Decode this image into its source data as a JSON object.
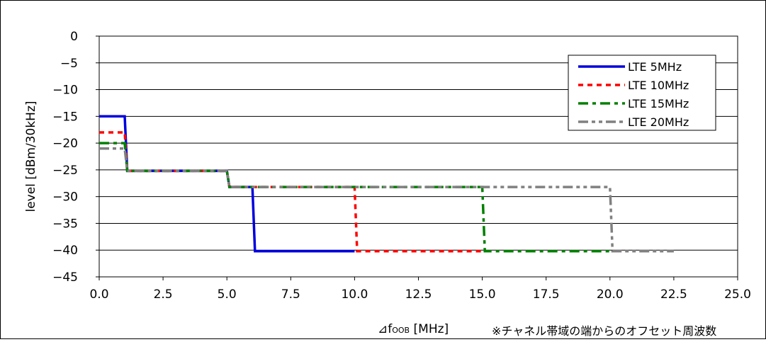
{
  "chart_data": {
    "type": "line",
    "title": "",
    "xlabel": "⊿fOOB [MHz]",
    "xlabel_main": "⊿f",
    "xlabel_sub": "OOB",
    "xlabel_unit": " [MHz]",
    "ylabel": "level [dBm/30kHz]",
    "note": "※チャネル帯域の端からのオフセット周波数",
    "xlim": [
      0,
      25
    ],
    "ylim": [
      -45,
      0
    ],
    "x_ticks": [
      "0.0",
      "2.5",
      "5.0",
      "7.5",
      "10.0",
      "12.5",
      "15.0",
      "17.5",
      "20.0",
      "22.5",
      "25.0"
    ],
    "y_ticks": [
      "0",
      "-5",
      "-10",
      "-15",
      "-20",
      "-25",
      "-30",
      "-35",
      "-40",
      "-45"
    ],
    "grid": "horizontal",
    "legend_position": "top-right",
    "series": [
      {
        "name": "LTE 5MHz",
        "color": "#0000dd",
        "dash": "solid",
        "points": [
          [
            0,
            -15
          ],
          [
            1,
            -15
          ],
          [
            1.1,
            -25.2
          ],
          [
            5,
            -25.2
          ],
          [
            5.1,
            -28.2
          ],
          [
            6,
            -28.2
          ],
          [
            6.1,
            -40.2
          ],
          [
            10,
            -40.2
          ]
        ]
      },
      {
        "name": "LTE 10MHz",
        "color": "#ff0000",
        "dash": "dot",
        "points": [
          [
            0,
            -18
          ],
          [
            1,
            -18
          ],
          [
            1.1,
            -25.2
          ],
          [
            5,
            -25.2
          ],
          [
            5.1,
            -28.2
          ],
          [
            10,
            -28.2
          ],
          [
            10.1,
            -40.2
          ],
          [
            15,
            -40.2
          ]
        ]
      },
      {
        "name": "LTE 15MHz",
        "color": "#008000",
        "dash": "dashdot",
        "points": [
          [
            0,
            -20
          ],
          [
            1,
            -20
          ],
          [
            1.1,
            -25.2
          ],
          [
            5,
            -25.2
          ],
          [
            5.1,
            -28.2
          ],
          [
            15,
            -28.2
          ],
          [
            15.1,
            -40.2
          ],
          [
            20,
            -40.2
          ]
        ]
      },
      {
        "name": "LTE 20MHz",
        "color": "#808080",
        "dash": "dashdotdot",
        "points": [
          [
            0,
            -21
          ],
          [
            1,
            -21
          ],
          [
            1.1,
            -25.2
          ],
          [
            5,
            -25.2
          ],
          [
            5.1,
            -28.2
          ],
          [
            20,
            -28.2
          ],
          [
            20.1,
            -40.2
          ],
          [
            22.5,
            -40.2
          ]
        ]
      }
    ]
  }
}
